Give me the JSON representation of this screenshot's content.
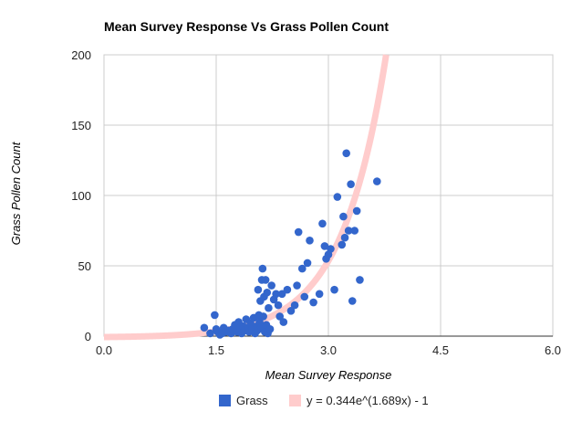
{
  "chart_data": {
    "type": "scatter",
    "title": "Mean Survey Response Vs Grass Pollen Count",
    "xlabel": "Mean Survey Response",
    "ylabel": "Grass Pollen Count",
    "xlim": [
      0,
      6
    ],
    "ylim": [
      0,
      200
    ],
    "x_ticks": [
      "0.0",
      "1.5",
      "3.0",
      "4.5",
      "6.0"
    ],
    "y_ticks": [
      "0",
      "50",
      "100",
      "150",
      "200"
    ],
    "grid": true,
    "legend_position": "bottom",
    "series": [
      {
        "name": "Grass",
        "color": "#3366cc",
        "points": [
          [
            1.34,
            6
          ],
          [
            1.42,
            2
          ],
          [
            1.48,
            15
          ],
          [
            1.5,
            5
          ],
          [
            1.52,
            3
          ],
          [
            1.55,
            1
          ],
          [
            1.58,
            2
          ],
          [
            1.6,
            6
          ],
          [
            1.63,
            3
          ],
          [
            1.66,
            4
          ],
          [
            1.7,
            2
          ],
          [
            1.72,
            5
          ],
          [
            1.75,
            8
          ],
          [
            1.78,
            3
          ],
          [
            1.8,
            10
          ],
          [
            1.82,
            6
          ],
          [
            1.84,
            2
          ],
          [
            1.86,
            7
          ],
          [
            1.88,
            4
          ],
          [
            1.9,
            12
          ],
          [
            1.92,
            6
          ],
          [
            1.94,
            3
          ],
          [
            1.96,
            9
          ],
          [
            1.98,
            5
          ],
          [
            2.0,
            13
          ],
          [
            2.02,
            2
          ],
          [
            2.04,
            7
          ],
          [
            2.05,
            4
          ],
          [
            2.06,
            33
          ],
          [
            2.07,
            15
          ],
          [
            2.08,
            10
          ],
          [
            2.09,
            25
          ],
          [
            2.1,
            6
          ],
          [
            2.11,
            40
          ],
          [
            2.12,
            48
          ],
          [
            2.13,
            14
          ],
          [
            2.14,
            28
          ],
          [
            2.15,
            3
          ],
          [
            2.16,
            40
          ],
          [
            2.17,
            8
          ],
          [
            2.18,
            31
          ],
          [
            2.19,
            2
          ],
          [
            2.2,
            20
          ],
          [
            2.22,
            5
          ],
          [
            2.24,
            36
          ],
          [
            2.27,
            26
          ],
          [
            2.3,
            30
          ],
          [
            2.33,
            22
          ],
          [
            2.35,
            14
          ],
          [
            2.38,
            30
          ],
          [
            2.4,
            10
          ],
          [
            2.45,
            33
          ],
          [
            2.5,
            18
          ],
          [
            2.55,
            22
          ],
          [
            2.58,
            36
          ],
          [
            2.6,
            74
          ],
          [
            2.65,
            48
          ],
          [
            2.68,
            28
          ],
          [
            2.72,
            52
          ],
          [
            2.75,
            68
          ],
          [
            2.8,
            24
          ],
          [
            2.88,
            30
          ],
          [
            2.92,
            80
          ],
          [
            2.95,
            64
          ],
          [
            2.97,
            55
          ],
          [
            3.0,
            58
          ],
          [
            3.03,
            62
          ],
          [
            3.08,
            33
          ],
          [
            3.12,
            99
          ],
          [
            3.18,
            65
          ],
          [
            3.2,
            85
          ],
          [
            3.22,
            70
          ],
          [
            3.24,
            130
          ],
          [
            3.27,
            75
          ],
          [
            3.3,
            108
          ],
          [
            3.32,
            25
          ],
          [
            3.35,
            75
          ],
          [
            3.38,
            89
          ],
          [
            3.42,
            40
          ],
          [
            3.65,
            110
          ]
        ]
      },
      {
        "name": "y = 0.344e^(1.689x) - 1",
        "color": "#ffcccc",
        "type": "trendline",
        "a": 0.344,
        "b": 1.689,
        "c": -1
      }
    ]
  }
}
